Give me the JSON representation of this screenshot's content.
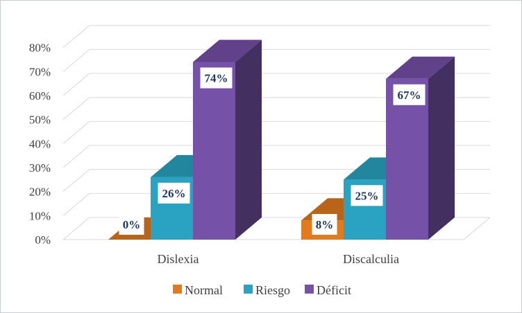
{
  "chart_data": {
    "type": "bar",
    "style": "3d-clustered-column",
    "title": "",
    "xlabel": "",
    "ylabel": "",
    "categories": [
      "Dislexia",
      "Discalculia"
    ],
    "series": [
      {
        "name": "Normal",
        "values": [
          0,
          8
        ],
        "labels": [
          "0%",
          "8%"
        ],
        "color": "#e07b20"
      },
      {
        "name": "Riesgo",
        "values": [
          26,
          25
        ],
        "labels": [
          "26%",
          "25%"
        ],
        "color": "#2aa3c2"
      },
      {
        "name": "Déficit",
        "values": [
          74,
          67
        ],
        "labels": [
          "74%",
          "67%"
        ],
        "color": "#7651a8"
      }
    ],
    "yticks": [
      "0%",
      "10%",
      "20%",
      "30%",
      "40%",
      "50%",
      "60%",
      "70%",
      "80%"
    ],
    "ylim": [
      0,
      80
    ],
    "grid": true,
    "legend": "bottom"
  }
}
